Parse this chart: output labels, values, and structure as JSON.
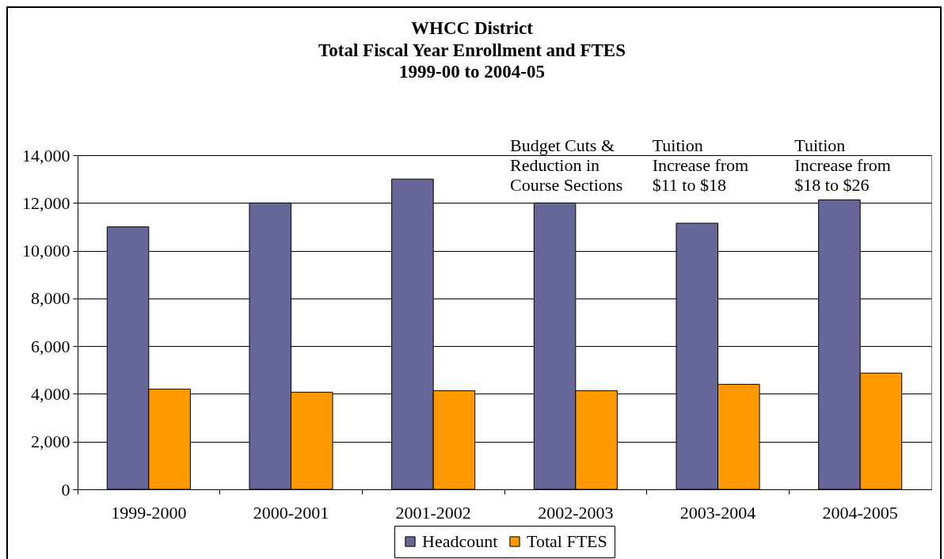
{
  "chart_data": {
    "type": "bar",
    "title": "WHCC District\nTotal Fiscal Year Enrollment and FTES\n1999-00 to 2004-05",
    "categories": [
      "1999-2000",
      "2000-2001",
      "2001-2002",
      "2002-2003",
      "2003-2004",
      "2004-2005"
    ],
    "series": [
      {
        "name": "Headcount",
        "color": "#666699",
        "values": [
          11000,
          12000,
          13000,
          12000,
          11150,
          12130
        ]
      },
      {
        "name": "Total FTES",
        "color": "#ff9900",
        "values": [
          4200,
          4070,
          4130,
          4130,
          4400,
          4870
        ]
      }
    ],
    "ylim": [
      0,
      14000
    ],
    "yticks": [
      0,
      {
        "value": 2000,
        "label": "2,000"
      },
      {
        "value": 4000,
        "label": "4,000"
      },
      {
        "value": 6000,
        "label": "6,000"
      },
      {
        "value": 8000,
        "label": "8,000"
      },
      {
        "value": 10000,
        "label": "10,000"
      },
      {
        "value": 12000,
        "label": "12,000"
      },
      {
        "value": 14000,
        "label": "14,000"
      }
    ],
    "grid": "y",
    "legend": "bottom",
    "annotations": [
      "Budget Cuts &\nReduction in\nCourse Sections",
      "Tuition\nIncrease from\n$11 to $18",
      "Tuition\nIncrease from\n$18 to $26"
    ]
  }
}
